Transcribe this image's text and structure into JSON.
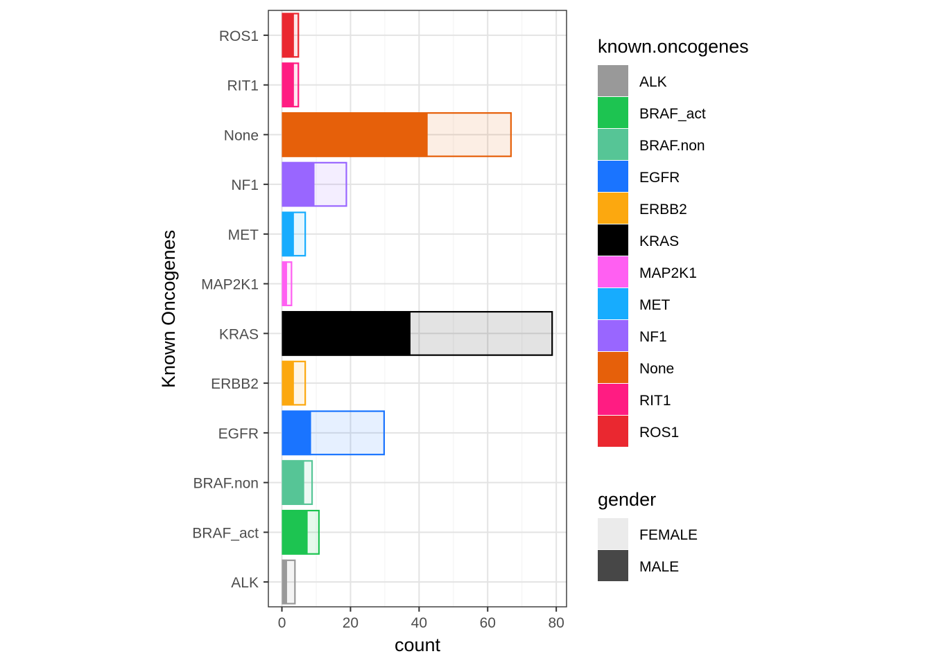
{
  "chart_data": {
    "type": "bar",
    "orientation": "horizontal",
    "stacked": true,
    "title": "",
    "xlabel": "count",
    "ylabel": "Known Oncogenes",
    "xlim": [
      -3.95,
      83.0
    ],
    "xticks": [
      0,
      20,
      40,
      60,
      80
    ],
    "grid": true,
    "categories": [
      "ALK",
      "BRAF_act",
      "BRAF.non",
      "EGFR",
      "ERBB2",
      "KRAS",
      "MAP2K1",
      "MET",
      "NF1",
      "None",
      "RIT1",
      "ROS1"
    ],
    "colors": [
      "#999999",
      "#1DC451",
      "#56C596",
      "#1A74FF",
      "#FCA80F",
      "#000000",
      "#FF5FF2",
      "#17ACFE",
      "#9966FF",
      "#E6600A",
      "#FF1C82",
      "#EA2830"
    ],
    "series": [
      {
        "name": "MALE",
        "values": [
          1.5,
          7.5,
          6.5,
          8.5,
          3.5,
          37.5,
          1.5,
          3.5,
          9.5,
          42.5,
          3.5,
          3.5
        ]
      },
      {
        "name": "FEMALE",
        "values": [
          2.5,
          3.5,
          2.5,
          21.5,
          3.5,
          41.5,
          1.5,
          3.5,
          9.5,
          24.5,
          1.5,
          1.5
        ]
      }
    ],
    "legends": [
      {
        "title": "known.oncogenes",
        "items": [
          "ALK",
          "BRAF_act",
          "BRAF.non",
          "EGFR",
          "ERBB2",
          "KRAS",
          "MAP2K1",
          "MET",
          "NF1",
          "None",
          "RIT1",
          "ROS1"
        ]
      },
      {
        "title": "gender",
        "items": [
          "FEMALE",
          "MALE"
        ],
        "colors": [
          "#EBEBEB",
          "#474747"
        ]
      }
    ],
    "legend_position": "right"
  }
}
